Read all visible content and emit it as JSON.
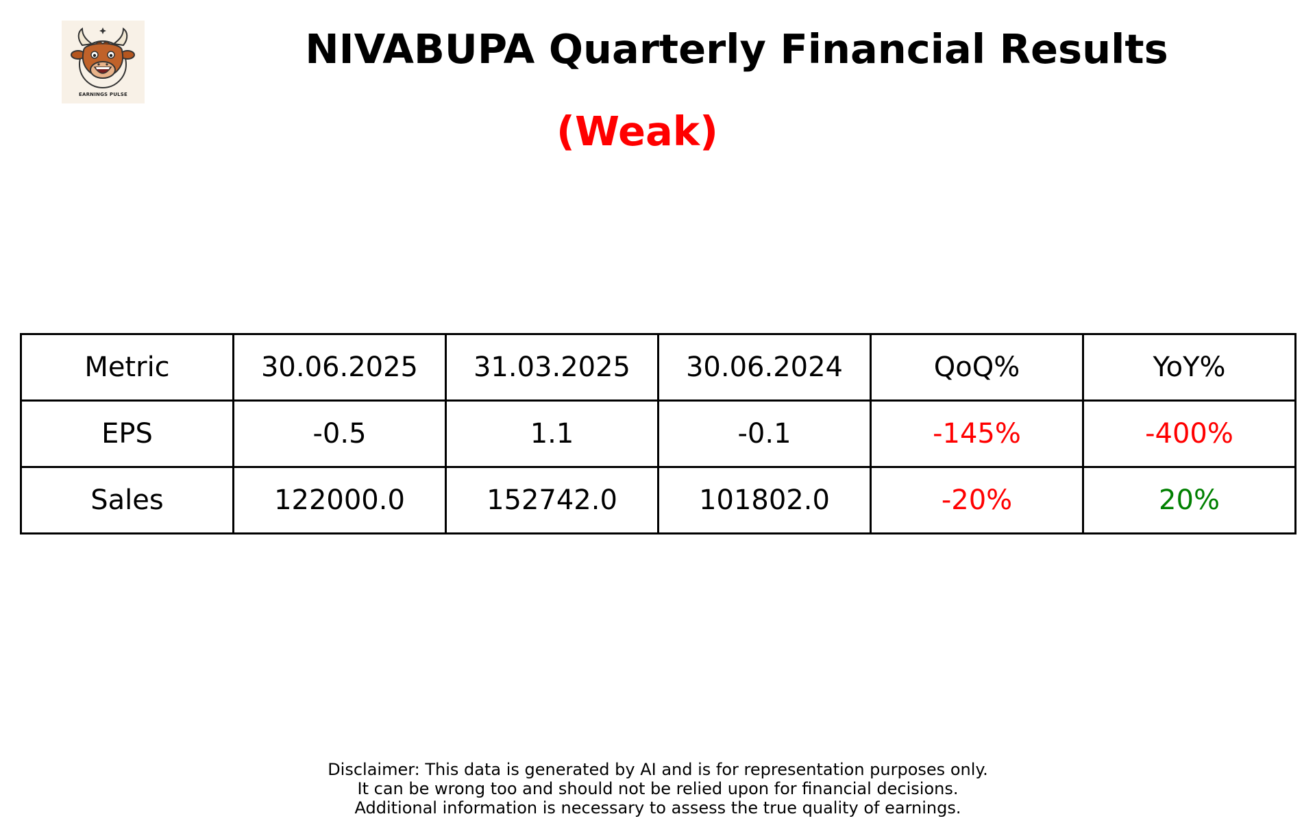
{
  "logo": {
    "caption": "EARNINGS PULSE",
    "icon": "bull-mascot-icon",
    "background": "#f8f1e7"
  },
  "header": {
    "title": "NIVABUPA Quarterly Financial Results",
    "rating": "(Weak)",
    "rating_color": "#ff0000"
  },
  "table": {
    "columns": [
      "Metric",
      "30.06.2025",
      "31.03.2025",
      "30.06.2024",
      "QoQ%",
      "YoY%"
    ],
    "rows": [
      {
        "metric": "EPS",
        "q1": "-0.5",
        "q2": "1.1",
        "q3": "-0.1",
        "qoq": "-145%",
        "yoy": "-400%"
      },
      {
        "metric": "Sales",
        "q1": "122000.0",
        "q2": "152742.0",
        "q3": "101802.0",
        "qoq": "-20%",
        "yoy": "20%"
      }
    ],
    "colors": {
      "negative": "#ff0000",
      "positive": "#008000"
    }
  },
  "disclaimer": {
    "line1": "Disclaimer: This data is generated by AI and is for representation purposes only.",
    "line2": "It can be wrong too and should not be relied upon for financial decisions.",
    "line3": "Additional information is necessary to assess the true quality of earnings."
  }
}
